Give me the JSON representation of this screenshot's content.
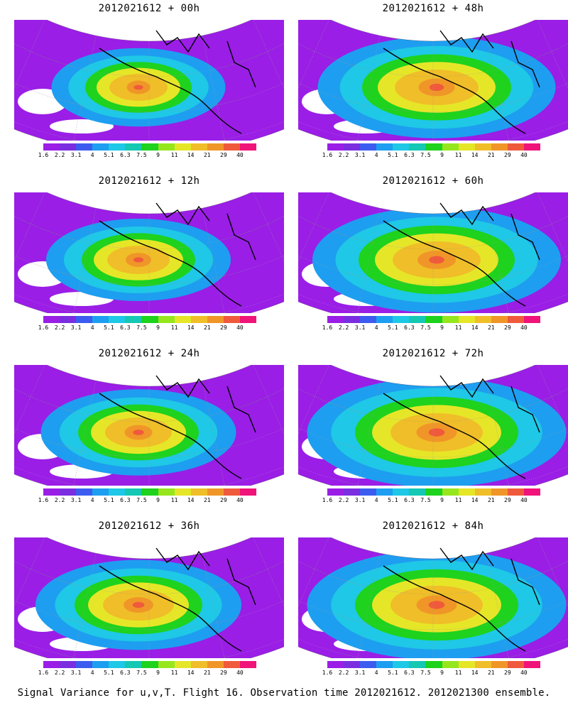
{
  "panels": [
    {
      "title": "2012021612 + 00h"
    },
    {
      "title": "2012021612 + 48h"
    },
    {
      "title": "2012021612 + 12h"
    },
    {
      "title": "2012021612 + 60h"
    },
    {
      "title": "2012021612 + 24h"
    },
    {
      "title": "2012021612 + 72h"
    },
    {
      "title": "2012021612 + 36h"
    },
    {
      "title": "2012021612 + 84h"
    }
  ],
  "colorbar": {
    "levels": [
      "1.6",
      "2.2",
      "3.1",
      "4",
      "5.1",
      "6.3",
      "7.5",
      "9",
      "11",
      "14",
      "21",
      "29",
      "40"
    ],
    "colors": [
      "#9a1ee6",
      "#7a2ee0",
      "#3c5cf0",
      "#1e9ef0",
      "#1ec8e6",
      "#14c8b4",
      "#1ed21e",
      "#96e61e",
      "#e6e628",
      "#f0be28",
      "#f09628",
      "#f05a3c",
      "#f0147a"
    ]
  },
  "footer": "Signal Variance for u,v,T. Flight 16. Observation time 2012021612. 2012021300 ensemble."
}
